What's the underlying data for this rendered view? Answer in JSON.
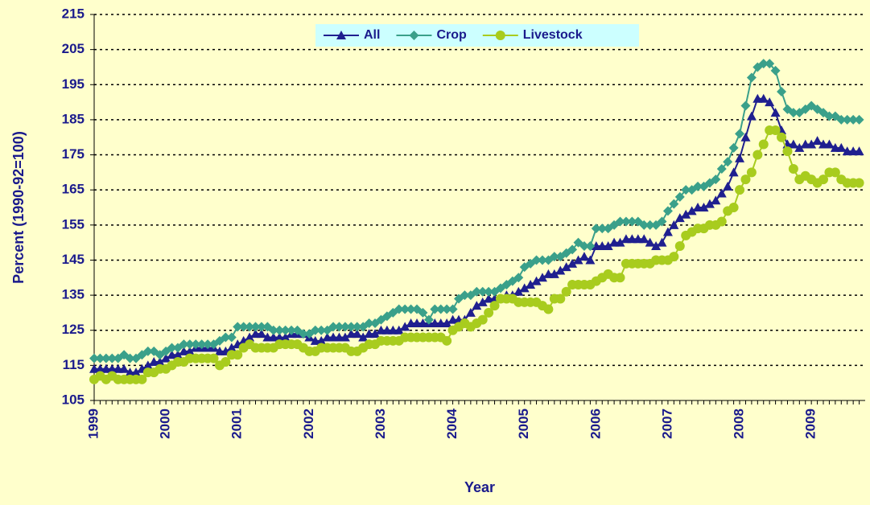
{
  "chart_data": {
    "type": "line",
    "x_label": "Year",
    "y_label": "Percent (1990-92=100)",
    "categories": [
      "1999",
      null,
      null,
      null,
      null,
      null,
      null,
      null,
      null,
      null,
      null,
      null,
      "2000",
      null,
      null,
      null,
      null,
      null,
      null,
      null,
      null,
      null,
      null,
      null,
      "2001",
      null,
      null,
      null,
      null,
      null,
      null,
      null,
      null,
      null,
      null,
      null,
      "2002",
      null,
      null,
      null,
      null,
      null,
      null,
      null,
      null,
      null,
      null,
      null,
      "2003",
      null,
      null,
      null,
      null,
      null,
      null,
      null,
      null,
      null,
      null,
      null,
      "2004",
      null,
      null,
      null,
      null,
      null,
      null,
      null,
      null,
      null,
      null,
      null,
      "2005",
      null,
      null,
      null,
      null,
      null,
      null,
      null,
      null,
      null,
      null,
      null,
      "2006",
      null,
      null,
      null,
      null,
      null,
      null,
      null,
      null,
      null,
      null,
      null,
      "2007",
      null,
      null,
      null,
      null,
      null,
      null,
      null,
      null,
      null,
      null,
      null,
      "2008",
      null,
      null,
      null,
      null,
      null,
      null,
      null,
      null,
      null,
      null,
      null,
      "2009",
      null,
      null,
      null,
      null,
      null,
      null,
      null,
      null
    ],
    "series": [
      {
        "name": "All",
        "color": "#1f1f8f",
        "marker": "triangle",
        "values": [
          114,
          114,
          114,
          114,
          114,
          114,
          113,
          113,
          114,
          115,
          116,
          116,
          117,
          118,
          118,
          119,
          119,
          120,
          120,
          120,
          120,
          119,
          119,
          120,
          121,
          122,
          123,
          124,
          124,
          123,
          123,
          123,
          123,
          124,
          124,
          124,
          123,
          122,
          122,
          123,
          123,
          123,
          123,
          124,
          124,
          123,
          124,
          124,
          125,
          125,
          125,
          125,
          126,
          127,
          127,
          127,
          127,
          127,
          127,
          127,
          128,
          128,
          128,
          130,
          132,
          133,
          134,
          134,
          134,
          135,
          135,
          136,
          137,
          138,
          139,
          140,
          141,
          141,
          142,
          143,
          144,
          145,
          146,
          145,
          149,
          149,
          149,
          150,
          150,
          151,
          151,
          151,
          151,
          150,
          149,
          150,
          153,
          155,
          157,
          158,
          159,
          160,
          160,
          161,
          162,
          164,
          166,
          170,
          174,
          180,
          186,
          191,
          191,
          190,
          187,
          182,
          178,
          178,
          177,
          178,
          178,
          179,
          178,
          178,
          177,
          177,
          176,
          176,
          176
        ]
      },
      {
        "name": "Crop",
        "color": "#3aa08a",
        "marker": "diamond",
        "values": [
          117,
          117,
          117,
          117,
          117,
          118,
          117,
          117,
          118,
          119,
          119,
          118,
          119,
          120,
          120,
          121,
          121,
          121,
          121,
          121,
          121,
          122,
          123,
          123,
          126,
          126,
          126,
          126,
          126,
          126,
          125,
          125,
          125,
          125,
          125,
          124,
          124,
          125,
          125,
          125,
          126,
          126,
          126,
          126,
          126,
          126,
          127,
          127,
          128,
          129,
          130,
          131,
          131,
          131,
          131,
          130,
          128,
          131,
          131,
          131,
          131,
          134,
          135,
          135,
          136,
          136,
          136,
          136,
          137,
          138,
          139,
          140,
          143,
          144,
          145,
          145,
          145,
          146,
          146,
          147,
          148,
          150,
          149,
          149,
          154,
          154,
          154,
          155,
          156,
          156,
          156,
          156,
          155,
          155,
          155,
          156,
          159,
          161,
          163,
          165,
          165,
          166,
          166,
          167,
          168,
          171,
          173,
          177,
          181,
          189,
          197,
          200,
          201,
          201,
          199,
          193,
          188,
          187,
          187,
          188,
          189,
          188,
          187,
          186,
          186,
          185,
          185,
          185,
          185
        ]
      },
      {
        "name": "Livestock",
        "color": "#a8cc1e",
        "marker": "circle",
        "values": [
          111,
          112,
          111,
          112,
          111,
          111,
          111,
          111,
          111,
          113,
          113,
          114,
          114,
          115,
          116,
          116,
          117,
          117,
          117,
          117,
          117,
          115,
          116,
          118,
          118,
          120,
          121,
          120,
          120,
          120,
          120,
          121,
          121,
          121,
          121,
          120,
          119,
          119,
          120,
          120,
          120,
          120,
          120,
          119,
          119,
          120,
          121,
          121,
          122,
          122,
          122,
          122,
          123,
          123,
          123,
          123,
          123,
          123,
          123,
          122,
          125,
          126,
          127,
          126,
          127,
          128,
          130,
          132,
          134,
          134,
          134,
          133,
          133,
          133,
          133,
          132,
          131,
          134,
          134,
          136,
          138,
          138,
          138,
          138,
          139,
          140,
          141,
          140,
          140,
          144,
          144,
          144,
          144,
          144,
          145,
          145,
          145,
          146,
          149,
          152,
          153,
          154,
          154,
          155,
          155,
          156,
          159,
          160,
          165,
          168,
          170,
          175,
          178,
          182,
          182,
          180,
          176,
          171,
          168,
          169,
          168,
          167,
          168,
          170,
          170,
          168,
          167,
          167,
          167
        ]
      }
    ],
    "ylim": [
      105,
      215
    ],
    "yticks": [
      105,
      115,
      125,
      135,
      145,
      155,
      165,
      175,
      185,
      195,
      205,
      215
    ],
    "grid": true,
    "legend": "top"
  }
}
